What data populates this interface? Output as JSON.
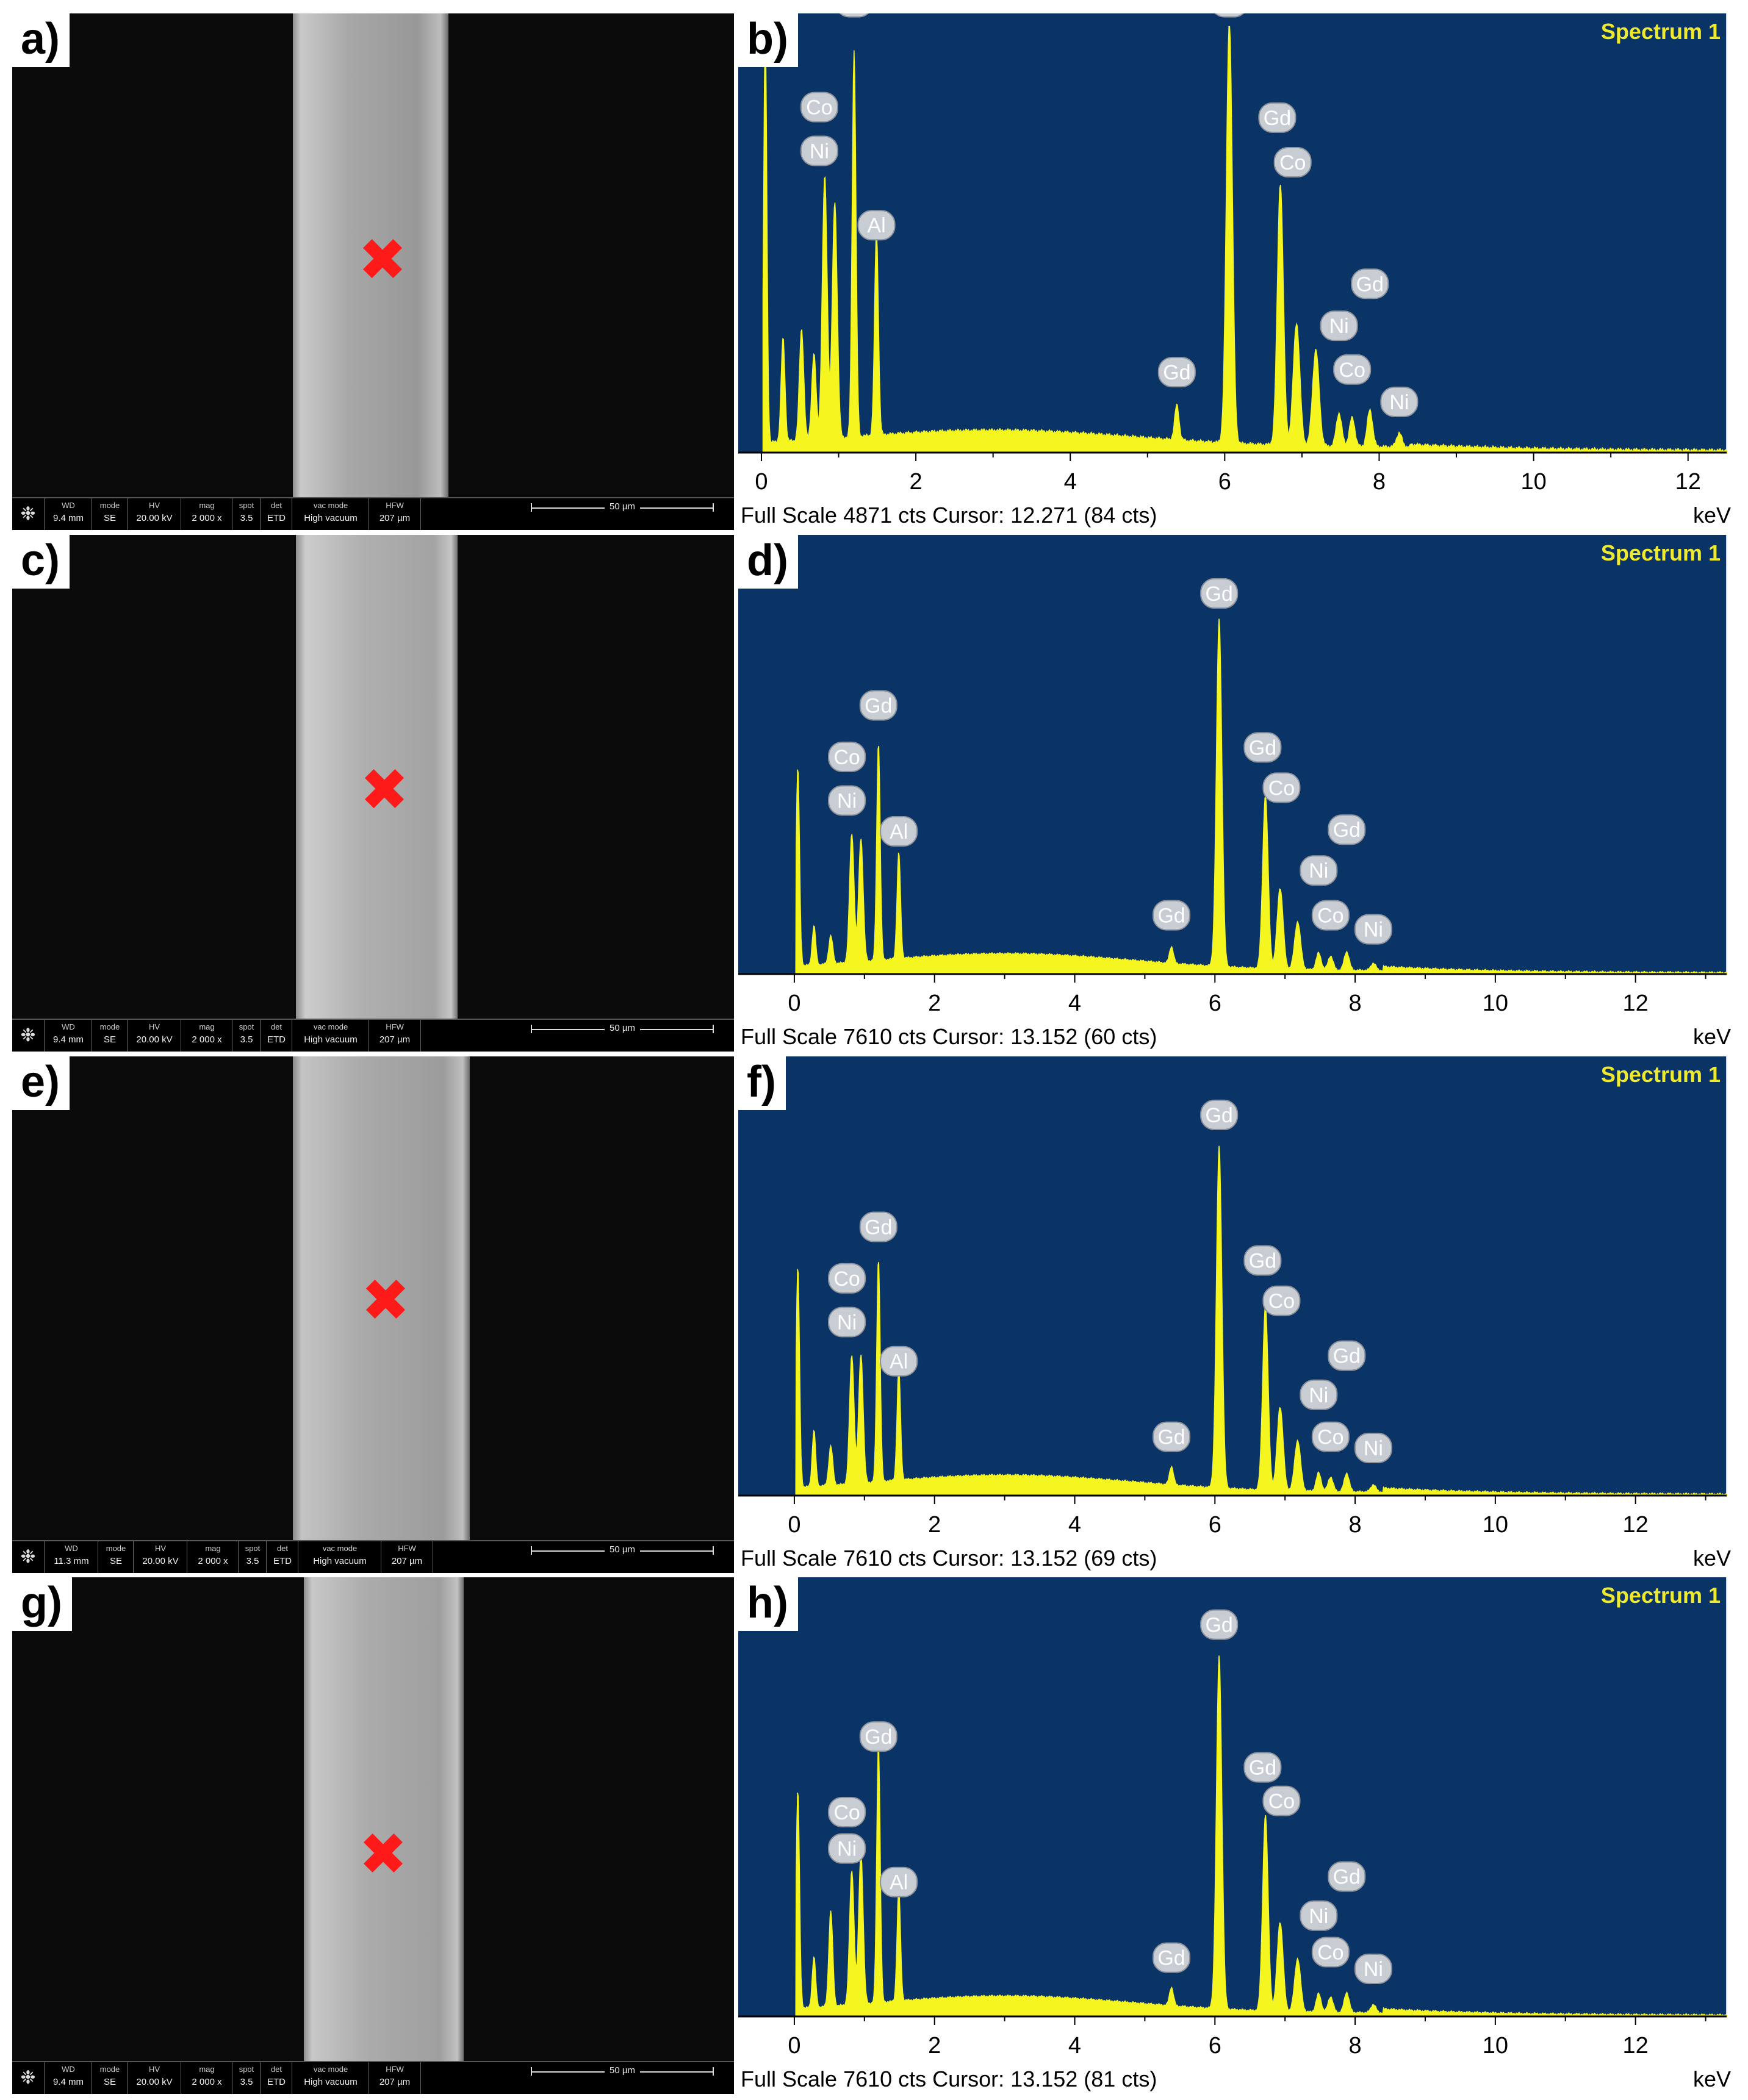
{
  "colors": {
    "plot_bg": "#0a3366",
    "spectrum": "#f5f51f",
    "spectrum_title": "#f0ea2c",
    "element_badge": "#c8ccd3",
    "marker": "#ff1a1a"
  },
  "sem_databar_headers": {
    "wd": "WD",
    "mode": "mode",
    "hv": "HV",
    "mag": "mag",
    "spot": "spot",
    "det": "det",
    "vac": "vac mode",
    "hfw": "HFW"
  },
  "sem_panels": [
    {
      "label": "a)",
      "marker": "✖",
      "databar": {
        "wd": "9.4 mm",
        "mode": "SE",
        "hv": "20.00 kV",
        "mag": "2 000 x",
        "spot": "3.5",
        "det": "ETD",
        "vac": "High vacuum",
        "hfw": "207 µm",
        "scale": "50 µm"
      }
    },
    {
      "label": "c)",
      "marker": "✖",
      "databar": {
        "wd": "9.4 mm",
        "mode": "SE",
        "hv": "20.00 kV",
        "mag": "2 000 x",
        "spot": "3.5",
        "det": "ETD",
        "vac": "High vacuum",
        "hfw": "207 µm",
        "scale": "50 µm"
      }
    },
    {
      "label": "e)",
      "marker": "✖",
      "databar": {
        "wd": "11.3 mm",
        "mode": "SE",
        "hv": "20.00 kV",
        "mag": "2 000 x",
        "spot": "3.5",
        "det": "ETD",
        "vac": "High vacuum",
        "hfw": "207 µm",
        "scale": "50 µm"
      }
    },
    {
      "label": "g)",
      "marker": "✖",
      "databar": {
        "wd": "9.4 mm",
        "mode": "SE",
        "hv": "20.00 kV",
        "mag": "2 000 x",
        "spot": "3.5",
        "det": "ETD",
        "vac": "High vacuum",
        "hfw": "207 µm",
        "scale": "50 µm"
      }
    }
  ],
  "chart_data": [
    {
      "type": "area",
      "panel_label": "b)",
      "title": "Spectrum 1",
      "xunit": "keV",
      "xlim": [
        -0.3,
        12.5
      ],
      "ylim": [
        0,
        4871
      ],
      "xticks": [
        0,
        2,
        4,
        6,
        8,
        10,
        12
      ],
      "footer": "Full Scale 4871 cts Cursor: 12.271  (84 cts)",
      "peaks": [
        {
          "e": 0.05,
          "cts": 4871,
          "w": 0.03
        },
        {
          "e": 0.28,
          "cts": 1180,
          "w": 0.035
        },
        {
          "e": 0.52,
          "cts": 1270,
          "w": 0.04
        },
        {
          "e": 0.68,
          "cts": 980,
          "w": 0.04
        },
        {
          "e": 0.82,
          "cts": 3000,
          "w": 0.045
        },
        {
          "e": 0.95,
          "cts": 2700,
          "w": 0.045
        },
        {
          "e": 1.2,
          "cts": 4420,
          "w": 0.035
        },
        {
          "e": 1.49,
          "cts": 2330,
          "w": 0.035
        },
        {
          "e": 5.38,
          "cts": 400,
          "w": 0.04
        },
        {
          "e": 6.06,
          "cts": 4871,
          "w": 0.055
        },
        {
          "e": 6.72,
          "cts": 3000,
          "w": 0.055
        },
        {
          "e": 6.93,
          "cts": 1400,
          "w": 0.06
        },
        {
          "e": 7.18,
          "cts": 1100,
          "w": 0.06
        },
        {
          "e": 7.48,
          "cts": 380,
          "w": 0.05
        },
        {
          "e": 7.65,
          "cts": 330,
          "w": 0.05
        },
        {
          "e": 7.88,
          "cts": 420,
          "w": 0.05
        },
        {
          "e": 8.26,
          "cts": 160,
          "w": 0.05
        }
      ],
      "element_labels": [
        {
          "el": "Gd",
          "e": 1.2,
          "cts": 5150
        },
        {
          "el": "Co",
          "e": 0.75,
          "cts": 3950
        },
        {
          "el": "Ni",
          "e": 0.75,
          "cts": 3450
        },
        {
          "el": "Al",
          "e": 1.49,
          "cts": 2600
        },
        {
          "el": "Gd",
          "e": 5.38,
          "cts": 920
        },
        {
          "el": "Gd",
          "e": 6.06,
          "cts": 5150
        },
        {
          "el": "Gd",
          "e": 6.68,
          "cts": 3830
        },
        {
          "el": "Co",
          "e": 6.88,
          "cts": 3320
        },
        {
          "el": "Gd",
          "e": 7.88,
          "cts": 1930
        },
        {
          "el": "Ni",
          "e": 7.48,
          "cts": 1450
        },
        {
          "el": "Co",
          "e": 7.65,
          "cts": 950
        },
        {
          "el": "Ni",
          "e": 8.26,
          "cts": 580
        }
      ]
    },
    {
      "type": "area",
      "panel_label": "d)",
      "title": "Spectrum 1",
      "xunit": "keV",
      "xlim": [
        -0.8,
        13.3
      ],
      "ylim": [
        0,
        7610
      ],
      "xticks": [
        0,
        2,
        4,
        6,
        8,
        10,
        12
      ],
      "footer": "Full Scale 7610 cts Cursor: 13.152  (60 cts)",
      "peaks": [
        {
          "e": 0.05,
          "cts": 3700,
          "w": 0.035
        },
        {
          "e": 0.28,
          "cts": 700,
          "w": 0.035
        },
        {
          "e": 0.52,
          "cts": 500,
          "w": 0.04
        },
        {
          "e": 0.82,
          "cts": 2300,
          "w": 0.045
        },
        {
          "e": 0.95,
          "cts": 2200,
          "w": 0.045
        },
        {
          "e": 1.2,
          "cts": 3900,
          "w": 0.035
        },
        {
          "e": 1.49,
          "cts": 1900,
          "w": 0.035
        },
        {
          "e": 5.38,
          "cts": 300,
          "w": 0.04
        },
        {
          "e": 6.06,
          "cts": 6200,
          "w": 0.055
        },
        {
          "e": 6.72,
          "cts": 3100,
          "w": 0.055
        },
        {
          "e": 6.93,
          "cts": 1450,
          "w": 0.06
        },
        {
          "e": 7.18,
          "cts": 850,
          "w": 0.06
        },
        {
          "e": 7.48,
          "cts": 300,
          "w": 0.05
        },
        {
          "e": 7.65,
          "cts": 250,
          "w": 0.05
        },
        {
          "e": 7.88,
          "cts": 330,
          "w": 0.05
        },
        {
          "e": 8.26,
          "cts": 130,
          "w": 0.05
        }
      ],
      "element_labels": [
        {
          "el": "Gd",
          "e": 6.06,
          "cts": 6800
        },
        {
          "el": "Gd",
          "e": 1.2,
          "cts": 4800
        },
        {
          "el": "Co",
          "e": 0.75,
          "cts": 3880
        },
        {
          "el": "Ni",
          "e": 0.75,
          "cts": 3100
        },
        {
          "el": "Al",
          "e": 1.49,
          "cts": 2550
        },
        {
          "el": "Gd",
          "e": 5.38,
          "cts": 1050
        },
        {
          "el": "Gd",
          "e": 6.68,
          "cts": 4050
        },
        {
          "el": "Co",
          "e": 6.95,
          "cts": 3330
        },
        {
          "el": "Gd",
          "e": 7.88,
          "cts": 2580
        },
        {
          "el": "Ni",
          "e": 7.48,
          "cts": 1850
        },
        {
          "el": "Co",
          "e": 7.65,
          "cts": 1050
        },
        {
          "el": "Ni",
          "e": 8.26,
          "cts": 800
        }
      ]
    },
    {
      "type": "area",
      "panel_label": "f)",
      "title": "Spectrum 1",
      "xunit": "keV",
      "xlim": [
        -0.8,
        13.3
      ],
      "ylim": [
        0,
        7610
      ],
      "xticks": [
        0,
        2,
        4,
        6,
        8,
        10,
        12
      ],
      "footer": "Full Scale 7610 cts Cursor: 13.152  (69 cts)",
      "peaks": [
        {
          "e": 0.05,
          "cts": 4100,
          "w": 0.035
        },
        {
          "e": 0.28,
          "cts": 1000,
          "w": 0.035
        },
        {
          "e": 0.52,
          "cts": 700,
          "w": 0.04
        },
        {
          "e": 0.82,
          "cts": 2300,
          "w": 0.045
        },
        {
          "e": 0.95,
          "cts": 2300,
          "w": 0.045
        },
        {
          "e": 1.2,
          "cts": 4000,
          "w": 0.035
        },
        {
          "e": 1.49,
          "cts": 2000,
          "w": 0.035
        },
        {
          "e": 5.38,
          "cts": 330,
          "w": 0.04
        },
        {
          "e": 6.06,
          "cts": 6100,
          "w": 0.055
        },
        {
          "e": 6.72,
          "cts": 3300,
          "w": 0.055
        },
        {
          "e": 6.93,
          "cts": 1500,
          "w": 0.06
        },
        {
          "e": 7.18,
          "cts": 900,
          "w": 0.06
        },
        {
          "e": 7.48,
          "cts": 330,
          "w": 0.05
        },
        {
          "e": 7.65,
          "cts": 260,
          "w": 0.05
        },
        {
          "e": 7.88,
          "cts": 330,
          "w": 0.05
        },
        {
          "e": 8.26,
          "cts": 130,
          "w": 0.05
        }
      ],
      "element_labels": [
        {
          "el": "Gd",
          "e": 6.06,
          "cts": 6800
        },
        {
          "el": "Gd",
          "e": 1.2,
          "cts": 4800
        },
        {
          "el": "Co",
          "e": 0.75,
          "cts": 3880
        },
        {
          "el": "Ni",
          "e": 0.75,
          "cts": 3100
        },
        {
          "el": "Al",
          "e": 1.49,
          "cts": 2400
        },
        {
          "el": "Gd",
          "e": 5.38,
          "cts": 1050
        },
        {
          "el": "Gd",
          "e": 6.68,
          "cts": 4200
        },
        {
          "el": "Co",
          "e": 6.95,
          "cts": 3480
        },
        {
          "el": "Gd",
          "e": 7.88,
          "cts": 2500
        },
        {
          "el": "Ni",
          "e": 7.48,
          "cts": 1800
        },
        {
          "el": "Co",
          "e": 7.65,
          "cts": 1050
        },
        {
          "el": "Ni",
          "e": 8.26,
          "cts": 850
        }
      ]
    },
    {
      "type": "area",
      "panel_label": "h)",
      "title": "Spectrum 1",
      "xunit": "keV",
      "xlim": [
        -0.8,
        13.3
      ],
      "ylim": [
        0,
        7610
      ],
      "xticks": [
        0,
        2,
        4,
        6,
        8,
        10,
        12
      ],
      "footer": "Full Scale 7610 cts Cursor: 13.152  (81 cts)",
      "peaks": [
        {
          "e": 0.05,
          "cts": 4050,
          "w": 0.035
        },
        {
          "e": 0.28,
          "cts": 900,
          "w": 0.035
        },
        {
          "e": 0.52,
          "cts": 1700,
          "w": 0.04
        },
        {
          "e": 0.82,
          "cts": 2400,
          "w": 0.045
        },
        {
          "e": 0.95,
          "cts": 2700,
          "w": 0.045
        },
        {
          "e": 1.2,
          "cts": 4650,
          "w": 0.035
        },
        {
          "e": 1.49,
          "cts": 2000,
          "w": 0.035
        },
        {
          "e": 5.38,
          "cts": 330,
          "w": 0.04
        },
        {
          "e": 6.06,
          "cts": 6300,
          "w": 0.055
        },
        {
          "e": 6.72,
          "cts": 3500,
          "w": 0.055
        },
        {
          "e": 6.93,
          "cts": 1600,
          "w": 0.06
        },
        {
          "e": 7.18,
          "cts": 950,
          "w": 0.06
        },
        {
          "e": 7.48,
          "cts": 330,
          "w": 0.05
        },
        {
          "e": 7.65,
          "cts": 280,
          "w": 0.05
        },
        {
          "e": 7.88,
          "cts": 360,
          "w": 0.05
        },
        {
          "e": 8.26,
          "cts": 150,
          "w": 0.05
        }
      ],
      "element_labels": [
        {
          "el": "Gd",
          "e": 6.06,
          "cts": 7000
        },
        {
          "el": "Gd",
          "e": 1.2,
          "cts": 5000
        },
        {
          "el": "Co",
          "e": 0.75,
          "cts": 3650
        },
        {
          "el": "Ni",
          "e": 0.75,
          "cts": 3000
        },
        {
          "el": "Al",
          "e": 1.49,
          "cts": 2400
        },
        {
          "el": "Gd",
          "e": 5.38,
          "cts": 1050
        },
        {
          "el": "Gd",
          "e": 6.68,
          "cts": 4450
        },
        {
          "el": "Co",
          "e": 6.95,
          "cts": 3850
        },
        {
          "el": "Gd",
          "e": 7.88,
          "cts": 2500
        },
        {
          "el": "Ni",
          "e": 7.48,
          "cts": 1800
        },
        {
          "el": "Co",
          "e": 7.65,
          "cts": 1150
        },
        {
          "el": "Ni",
          "e": 8.26,
          "cts": 850
        }
      ]
    }
  ]
}
